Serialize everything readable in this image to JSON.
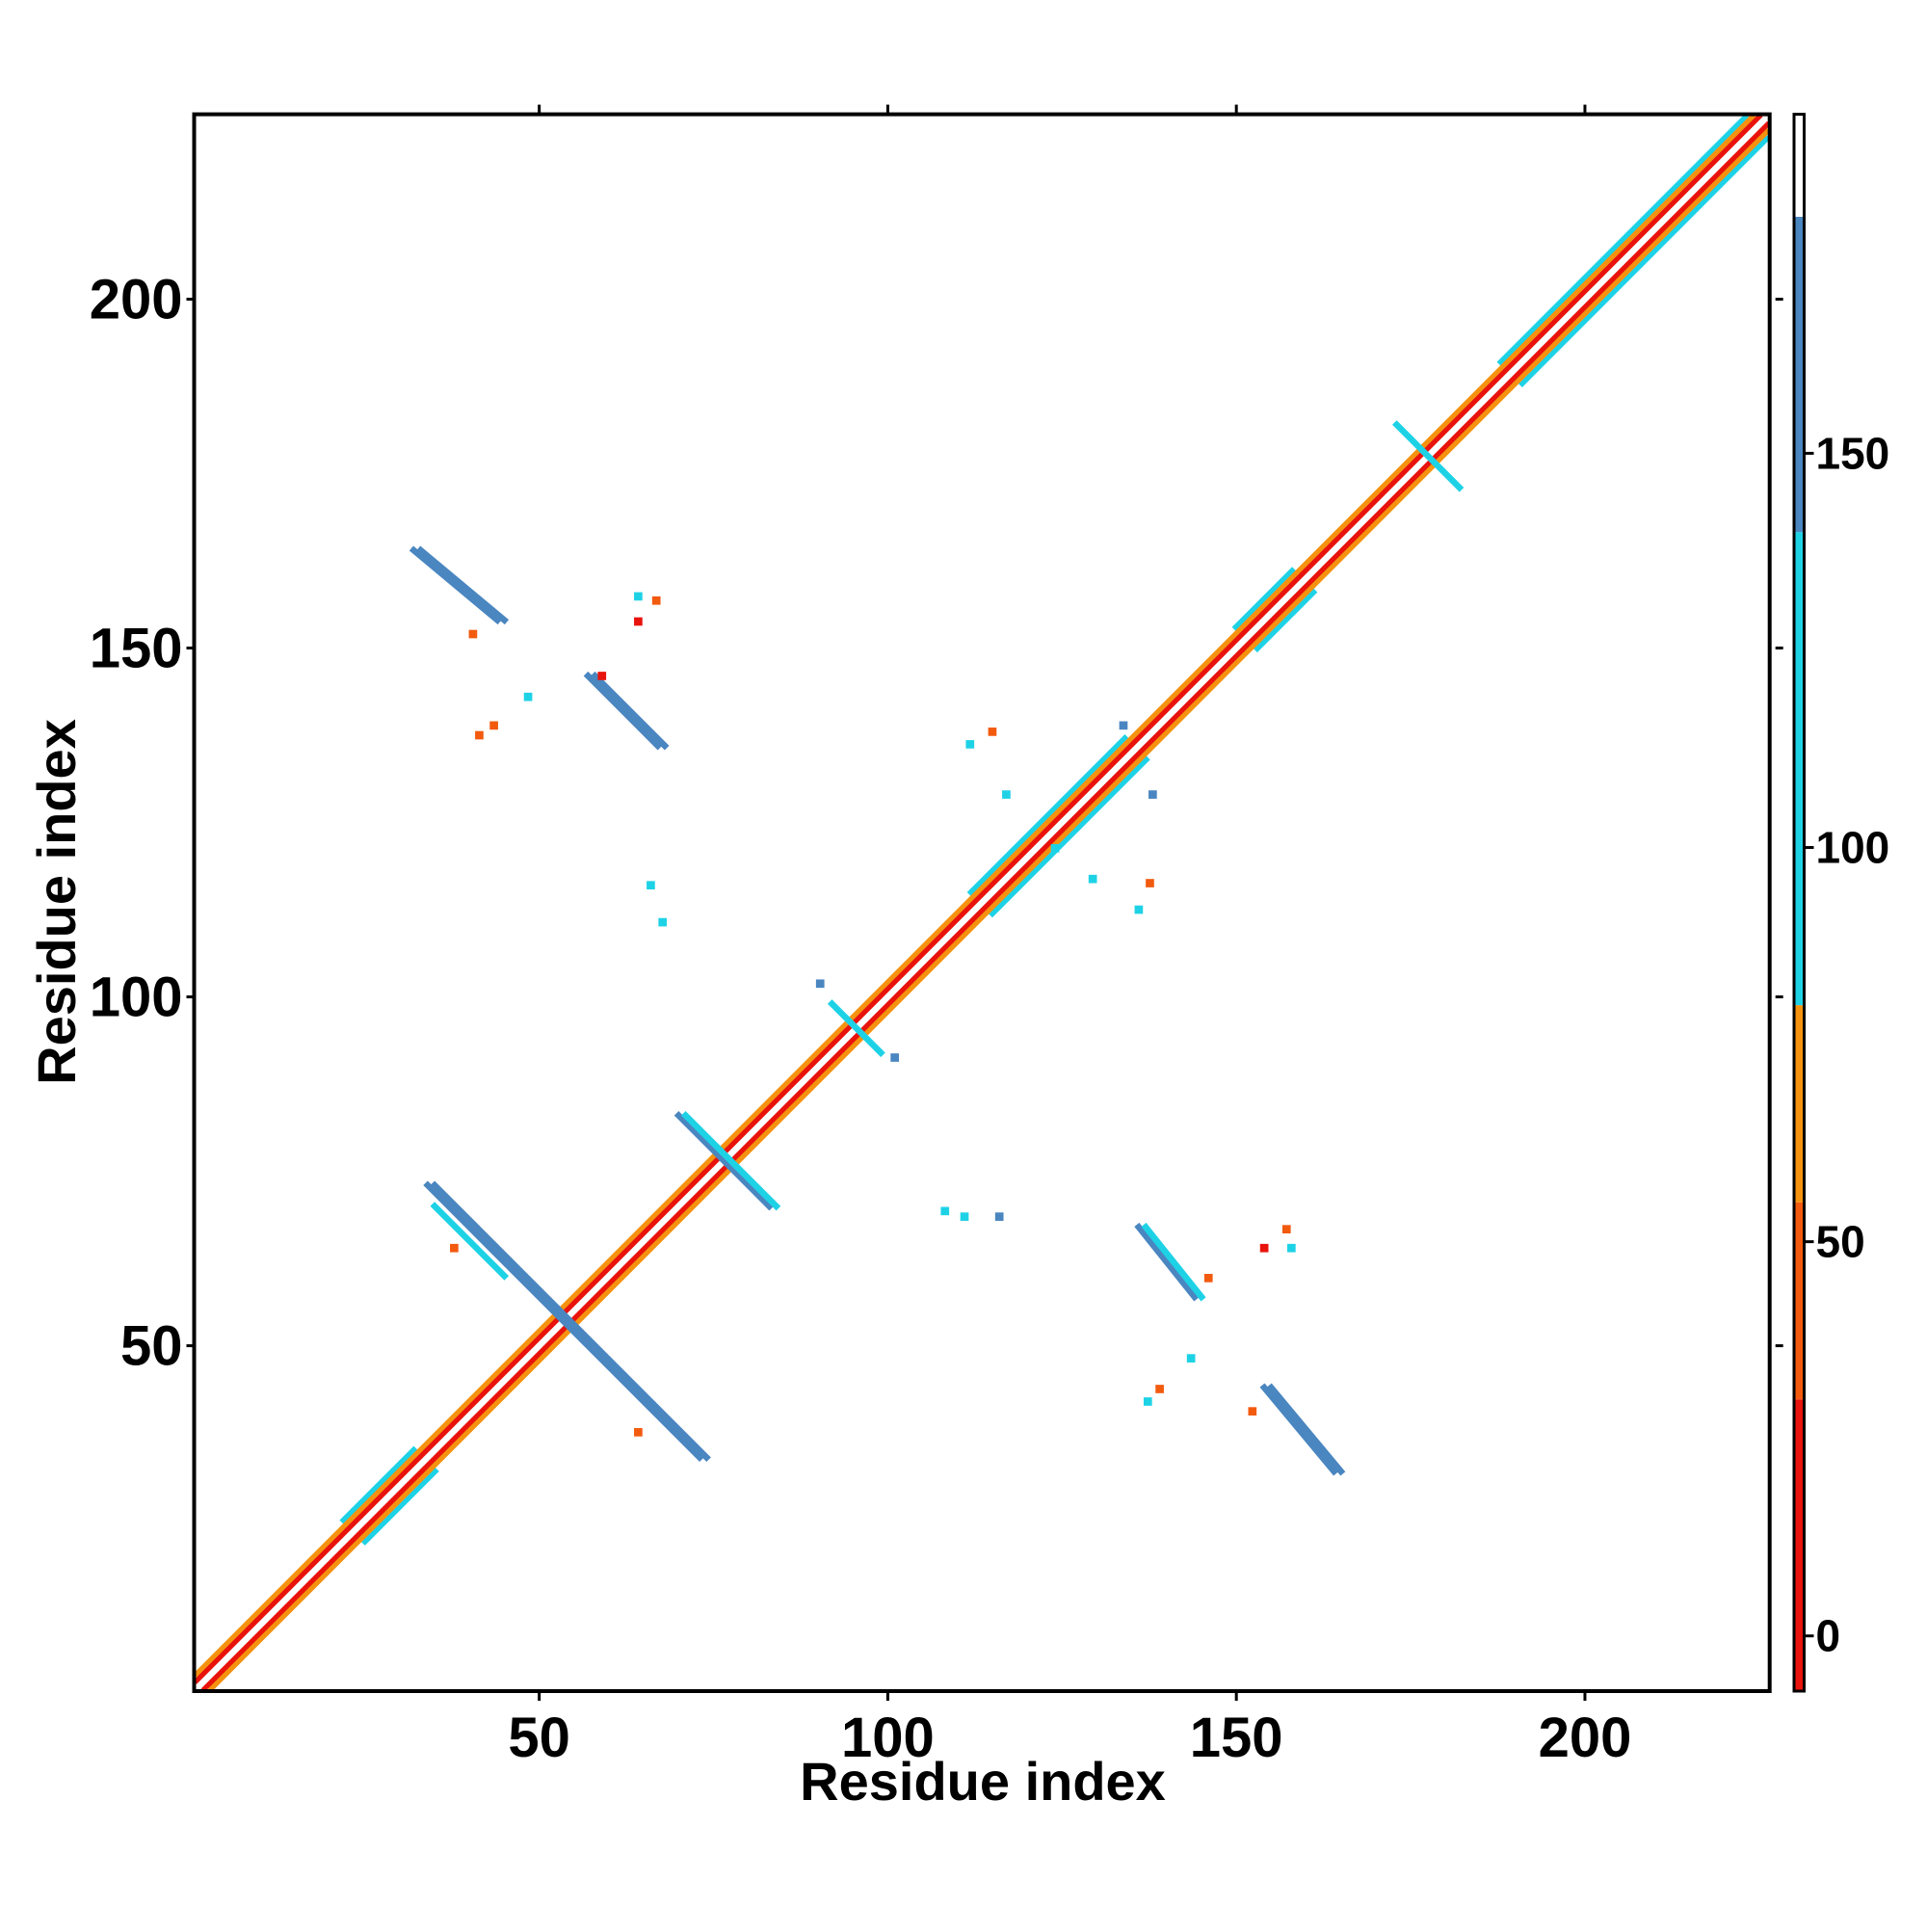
{
  "chart_data": {
    "type": "contact-map",
    "x_label": "Residue index",
    "y_label": "Residue index",
    "xlim": [
      0.5,
      226.5
    ],
    "ylim": [
      0.5,
      226.5
    ],
    "xticks": [
      50,
      100,
      150,
      200
    ],
    "yticks": [
      50,
      100,
      150,
      200
    ],
    "colorbar": {
      "lim": [
        -7,
        193
      ],
      "ticks": [
        0,
        50,
        100,
        150
      ],
      "bounds": [
        -7,
        30,
        55,
        80,
        140,
        180,
        193
      ],
      "colors": [
        "#e8130c",
        "#f25a0e",
        "#f5920f",
        "#1ed2e6",
        "#4a86c0",
        "#ffffff"
      ]
    },
    "bands": [
      {
        "x": [
          22,
          32
        ],
        "y": [
          25,
          35
        ],
        "value": 100
      },
      {
        "x": [
          25,
          35
        ],
        "y": [
          22,
          32
        ],
        "value": 100
      },
      {
        "x": [
          112,
          134
        ],
        "y": [
          115,
          137
        ],
        "value": 100
      },
      {
        "x": [
          115,
          137
        ],
        "y": [
          112,
          134
        ],
        "value": 100
      },
      {
        "x": [
          150,
          158
        ],
        "y": [
          153,
          161
        ],
        "value": 100
      },
      {
        "x": [
          153,
          161
        ],
        "y": [
          150,
          158
        ],
        "value": 100
      },
      {
        "x": [
          188,
          223
        ],
        "y": [
          191,
          226
        ],
        "value": 100
      },
      {
        "x": [
          191,
          226
        ],
        "y": [
          188,
          223
        ],
        "value": 100
      },
      {
        "x": [
          1,
          224
        ],
        "y": [
          3,
          226
        ],
        "value": 60
      },
      {
        "x": [
          3,
          226
        ],
        "y": [
          1,
          224
        ],
        "value": 60
      },
      {
        "x": [
          1,
          225
        ],
        "y": [
          2,
          226
        ],
        "value": 15
      },
      {
        "x": [
          2,
          226
        ],
        "y": [
          1,
          225
        ],
        "value": 15
      },
      {
        "x": [
          1,
          226
        ],
        "y": [
          1,
          226
        ],
        "value": 186
      },
      {
        "x": [
          34,
          73
        ],
        "y": [
          73,
          34
        ],
        "value": 150
      },
      {
        "x": [
          35,
          74
        ],
        "y": [
          73,
          34
        ],
        "value": 150
      },
      {
        "x": [
          35,
          45
        ],
        "y": [
          70,
          60
        ],
        "value": 100
      },
      {
        "x": [
          32,
          44
        ],
        "y": [
          164,
          154
        ],
        "value": 150
      },
      {
        "x": [
          33,
          45
        ],
        "y": [
          164,
          154
        ],
        "value": 150
      },
      {
        "x": [
          57,
          67
        ],
        "y": [
          146,
          136
        ],
        "value": 150
      },
      {
        "x": [
          58,
          68
        ],
        "y": [
          146,
          136
        ],
        "value": 150
      },
      {
        "x": [
          136,
          144
        ],
        "y": [
          67,
          57
        ],
        "value": 140
      },
      {
        "x": [
          137,
          145
        ],
        "y": [
          67,
          57
        ],
        "value": 100
      },
      {
        "x": [
          154,
          164
        ],
        "y": [
          44,
          32
        ],
        "value": 150
      },
      {
        "x": [
          155,
          165
        ],
        "y": [
          44,
          32
        ],
        "value": 150
      },
      {
        "x": [
          70,
          83
        ],
        "y": [
          83,
          70
        ],
        "value": 140
      },
      {
        "x": [
          71,
          84
        ],
        "y": [
          83,
          70
        ],
        "value": 100
      },
      {
        "x": [
          173,
          182
        ],
        "y": [
          182,
          173
        ],
        "value": 120
      },
      {
        "x": [
          92,
          99
        ],
        "y": [
          99,
          92
        ],
        "value": 100
      }
    ],
    "spots": [
      {
        "x": 67.7,
        "y": 110.7,
        "value": 100
      },
      {
        "x": 66,
        "y": 116,
        "value": 100
      },
      {
        "x": 111.8,
        "y": 136.2,
        "value": 100
      },
      {
        "x": 115,
        "y": 138,
        "value": 50
      },
      {
        "x": 117,
        "y": 129,
        "value": 100
      },
      {
        "x": 138,
        "y": 129,
        "value": 150
      },
      {
        "x": 136,
        "y": 112.5,
        "value": 100
      },
      {
        "x": 137.6,
        "y": 116.3,
        "value": 50
      },
      {
        "x": 111,
        "y": 68.5,
        "value": 100
      },
      {
        "x": 108.2,
        "y": 69.3,
        "value": 100
      },
      {
        "x": 116,
        "y": 68.5,
        "value": 150
      },
      {
        "x": 143.5,
        "y": 48.2,
        "value": 100
      },
      {
        "x": 137.3,
        "y": 42,
        "value": 100
      },
      {
        "x": 139,
        "y": 43.8,
        "value": 30
      },
      {
        "x": 154,
        "y": 64,
        "value": 20
      },
      {
        "x": 157.2,
        "y": 66.7,
        "value": 50
      },
      {
        "x": 157.9,
        "y": 64,
        "value": 100
      },
      {
        "x": 64.2,
        "y": 157.4,
        "value": 100
      },
      {
        "x": 66.8,
        "y": 156.8,
        "value": 50
      },
      {
        "x": 64.2,
        "y": 153.8,
        "value": 20
      },
      {
        "x": 48.4,
        "y": 143,
        "value": 100
      },
      {
        "x": 43.5,
        "y": 138.9,
        "value": 30
      },
      {
        "x": 41.4,
        "y": 137.5,
        "value": 50
      },
      {
        "x": 40.5,
        "y": 152,
        "value": 50
      },
      {
        "x": 90.3,
        "y": 101.9,
        "value": 150
      },
      {
        "x": 101,
        "y": 91.3,
        "value": 150
      },
      {
        "x": 124,
        "y": 121.3,
        "value": 100
      },
      {
        "x": 129.4,
        "y": 116.9,
        "value": 100
      },
      {
        "x": 133.8,
        "y": 138.9,
        "value": 150
      },
      {
        "x": 59,
        "y": 146,
        "value": 20
      },
      {
        "x": 37.8,
        "y": 64,
        "value": 50
      },
      {
        "x": 64.2,
        "y": 37.6,
        "value": 50
      },
      {
        "x": 152.3,
        "y": 40.6,
        "value": 50
      },
      {
        "x": 146,
        "y": 59.7,
        "value": 50
      }
    ]
  }
}
